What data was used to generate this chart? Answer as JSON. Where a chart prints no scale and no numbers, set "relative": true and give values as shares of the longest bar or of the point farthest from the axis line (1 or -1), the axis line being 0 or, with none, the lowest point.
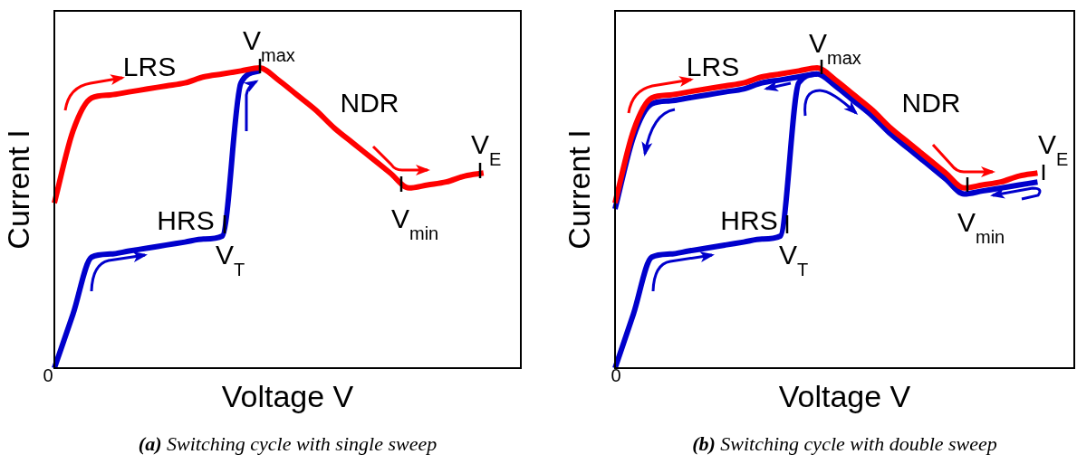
{
  "chart_data": [
    {
      "type": "line",
      "title": "(a) Switching cycle with single sweep",
      "xlabel": "Voltage V",
      "ylabel": "Current I",
      "categories": [
        null,
        null,
        null,
        null,
        null,
        null,
        null,
        null,
        null,
        null,
        null,
        null,
        null,
        null,
        null,
        null,
        null,
        null,
        null,
        null,
        null,
        null,
        null,
        null,
        null,
        null
      ],
      "relative": true,
      "legend": false,
      "marker": "none",
      "line_style": "solid",
      "series": [
        {
          "color": "#ff0000",
          "values": [
            0.55,
            0.79,
            0.9,
            0.91,
            0.92,
            0.93,
            0.94,
            0.95,
            0.97,
            0.98,
            0.99,
            1.0,
            0.96,
            0.91,
            0.86,
            0.8,
            0.75,
            0.7,
            0.65,
            0.6,
            0.61,
            0.62,
            0.64,
            0.65,
            null,
            null
          ]
        },
        {
          "color": "#0000cc",
          "values": [
            0,
            0.18,
            0.37,
            0.38,
            0.39,
            0.4,
            0.41,
            0.42,
            0.43,
            0.44,
            0.95,
            0.99,
            null,
            null,
            null,
            null,
            null,
            null,
            null,
            null,
            null,
            null,
            null,
            null,
            null,
            null
          ]
        }
      ],
      "annotations": [
        "LRS",
        "NDR",
        "HRS",
        "V$_{max}$",
        "V$_{T}$",
        "V$_{min}$",
        "V$_{E}$",
        "0"
      ]
    },
    {
      "type": "line",
      "title": "(b) Switching cycle with double sweep",
      "xlabel": "Voltage V",
      "ylabel": "Current I",
      "categories": [
        null,
        null,
        null,
        null,
        null,
        null,
        null,
        null,
        null,
        null,
        null,
        null,
        null,
        null,
        null,
        null,
        null,
        null,
        null,
        null,
        null,
        null,
        null,
        null,
        null,
        null
      ],
      "relative": true,
      "legend": false,
      "marker": "none",
      "line_style": "solid",
      "series": [
        {
          "color": "#ff0000",
          "values": [
            0.55,
            0.79,
            0.9,
            0.91,
            0.92,
            0.93,
            0.94,
            0.95,
            0.97,
            0.98,
            0.99,
            1.0,
            0.96,
            0.91,
            0.86,
            0.8,
            0.75,
            0.7,
            0.65,
            0.6,
            0.61,
            0.62,
            0.64,
            0.65,
            null,
            null
          ]
        },
        {
          "color": "#0000cc",
          "values": [
            0.53,
            0.77,
            0.88,
            0.89,
            0.9,
            0.91,
            0.92,
            0.93,
            0.95,
            0.96,
            0.97,
            0.98,
            0.94,
            0.89,
            0.84,
            0.78,
            0.73,
            0.68,
            0.63,
            0.58,
            0.59,
            0.6,
            0.61,
            0.62,
            null,
            null
          ]
        },
        {
          "color": "#0000cc",
          "values": [
            0,
            0.18,
            0.37,
            0.38,
            0.39,
            0.4,
            0.41,
            0.42,
            0.43,
            0.44,
            0.95,
            0.98,
            null,
            null,
            null,
            null,
            null,
            null,
            null,
            null,
            null,
            null,
            null,
            null,
            null,
            null
          ]
        }
      ],
      "annotations": [
        "LRS",
        "NDR",
        "HRS",
        "V$_{max}$",
        "V$_{T}$",
        "V$_{min}$",
        "V$_{E}$",
        "0"
      ]
    }
  ]
}
